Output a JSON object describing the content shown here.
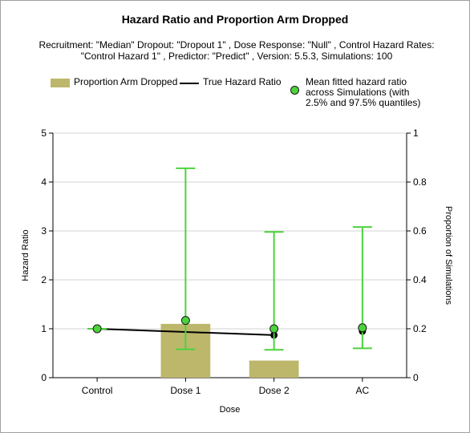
{
  "chart_data": {
    "type": "bar",
    "title": "Hazard Ratio and Proportion Arm Dropped",
    "subtitle": "Recruitment: \"Median\" Dropout: \"Dropout 1\" , Dose Response: \"Null\" , Control Hazard Rates: \"Control Hazard 1\" , Predictor: \"Predict\" , Version: 5.5.3, Simulations: 100",
    "xlabel": "Dose",
    "ylabel": "Hazard Ratio",
    "ylabel_right": "Proportion of Simulations",
    "categories": [
      "Control",
      "Dose 1",
      "Dose 2",
      "AC"
    ],
    "ylim": [
      0,
      5
    ],
    "ylim_right": [
      0,
      1
    ],
    "yticks": [
      "0",
      "1",
      "2",
      "3",
      "4",
      "5"
    ],
    "yticks_right": [
      "0",
      "0.2",
      "0.4",
      "0.6",
      "0.8",
      "1"
    ],
    "grid": true,
    "legend_position": "top",
    "series": [
      {
        "name": "Proportion Arm Dropped",
        "kind": "bar",
        "axis": "right",
        "color": "#bdb76b",
        "values": [
          null,
          0.22,
          0.07,
          null
        ]
      },
      {
        "name": "True Hazard Ratio",
        "kind": "line",
        "axis": "left",
        "color": "#000000",
        "values": [
          1.0,
          null,
          0.87,
          0.95
        ]
      },
      {
        "name": "Mean fitted hazard ratio across Simulations (with 2.5% and 97.5% quantiles)",
        "kind": "errorbar",
        "axis": "left",
        "color": "#4cd23c",
        "values": [
          1.0,
          1.17,
          1.0,
          1.02
        ],
        "lower": [
          1.0,
          0.58,
          0.57,
          0.6
        ],
        "upper": [
          1.0,
          4.28,
          2.98,
          3.08
        ]
      }
    ]
  }
}
